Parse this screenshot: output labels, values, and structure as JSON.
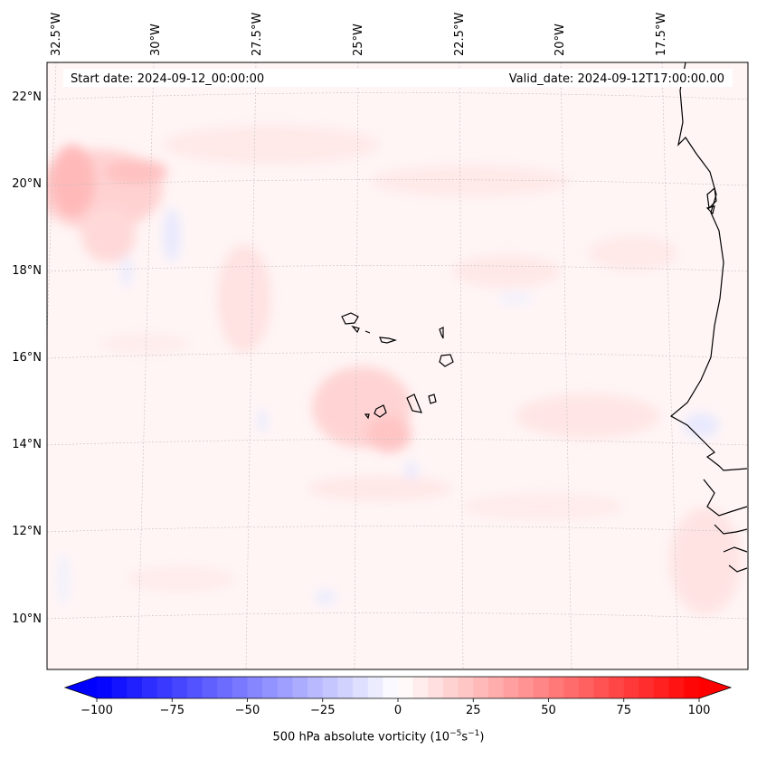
{
  "map": {
    "start_date": "Start date: 2024-09-12_00:00:00",
    "valid_date": "Valid_date: 2024-09-12T17:00:00.00",
    "lon_labels": [
      "32.5°W",
      "30°W",
      "27.5°W",
      "25°W",
      "22.5°W",
      "20°W",
      "17.5°W"
    ],
    "lat_labels": [
      "22°N",
      "20°N",
      "18°N",
      "16°N",
      "14°N",
      "12°N",
      "10°N"
    ],
    "variable": "500 hPa absolute vorticity",
    "units_base": "10",
    "units_exp1": "−5",
    "units_s": "s",
    "units_exp2": "−1"
  },
  "colorbar": {
    "min": -100,
    "max": 100,
    "step": 5,
    "tick_values": [
      -100,
      -75,
      -50,
      -25,
      0,
      25,
      50,
      75,
      100
    ],
    "tick_labels": [
      "−100",
      "−75",
      "−50",
      "−25",
      "0",
      "25",
      "50",
      "75",
      "100"
    ],
    "low_color": "#0000ff",
    "mid_color": "#ffffff",
    "high_color": "#ff0000"
  }
}
